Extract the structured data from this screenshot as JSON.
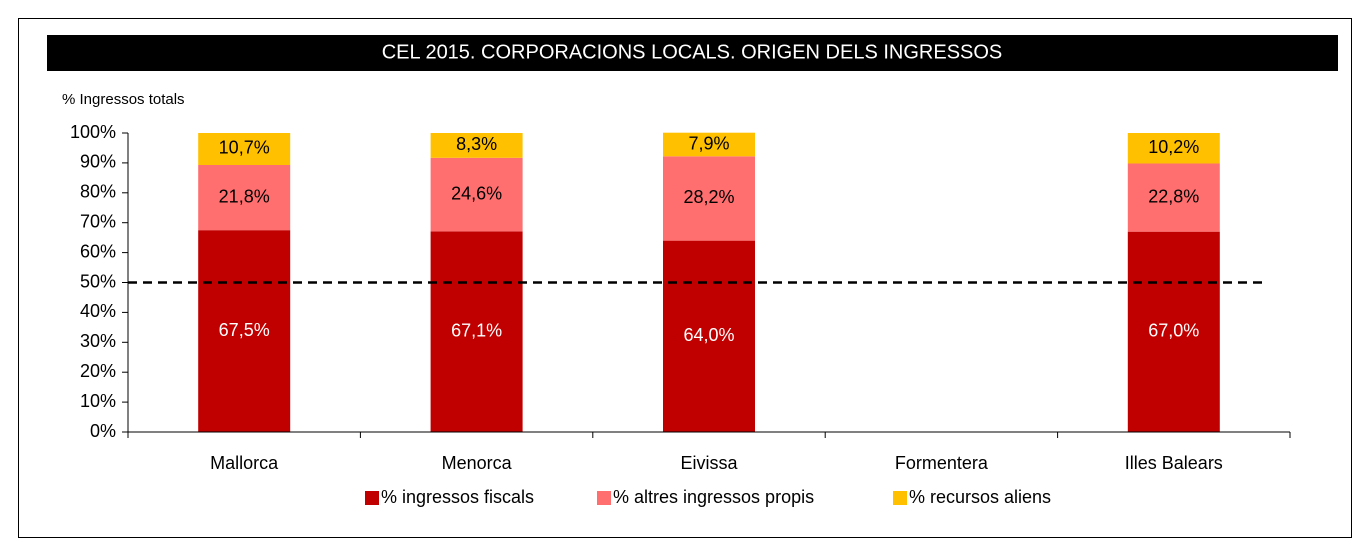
{
  "chart_data": {
    "type": "stacked_bar",
    "title": "CEL 2015. CORPORACIONS LOCALS.  ORIGEN DELS INGRESSOS",
    "y_label": "% Ingressos totals",
    "categories": [
      "Mallorca",
      "Menorca",
      "Eivissa",
      "Formentera",
      "Illes Balears"
    ],
    "series": [
      {
        "name": "% ingressos fiscals",
        "color": "#c00000",
        "label_color": "#ffffff",
        "values": [
          67.5,
          67.1,
          64.0,
          null,
          67.0
        ],
        "value_labels": [
          "67,5%",
          "67,1%",
          "64,0%",
          null,
          "67,0%"
        ]
      },
      {
        "name": "% altres ingressos propis",
        "color": "#ff6f6f",
        "label_color": "#000000",
        "values": [
          21.8,
          24.6,
          28.2,
          null,
          22.8
        ],
        "value_labels": [
          "21,8%",
          "24,6%",
          "28,2%",
          null,
          "22,8%"
        ]
      },
      {
        "name": "% recursos aliens",
        "color": "#ffc000",
        "label_color": "#000000",
        "values": [
          10.7,
          8.3,
          7.9,
          null,
          10.2
        ],
        "value_labels": [
          "10,7%",
          "8,3%",
          "7,9%",
          null,
          "10,2%"
        ]
      }
    ],
    "ylim": [
      0,
      100
    ],
    "yticks": [
      {
        "value": 0,
        "label": "0%"
      },
      {
        "value": 10,
        "label": "10%"
      },
      {
        "value": 20,
        "label": "20%"
      },
      {
        "value": 30,
        "label": "30%"
      },
      {
        "value": 40,
        "label": "40%"
      },
      {
        "value": 50,
        "label": "50%"
      },
      {
        "value": 60,
        "label": "60%"
      },
      {
        "value": 70,
        "label": "70%"
      },
      {
        "value": 80,
        "label": "80%"
      },
      {
        "value": 90,
        "label": "90%"
      },
      {
        "value": 100,
        "label": "100%"
      }
    ],
    "reference_line": 50,
    "grid": false,
    "legend": "bottom"
  }
}
